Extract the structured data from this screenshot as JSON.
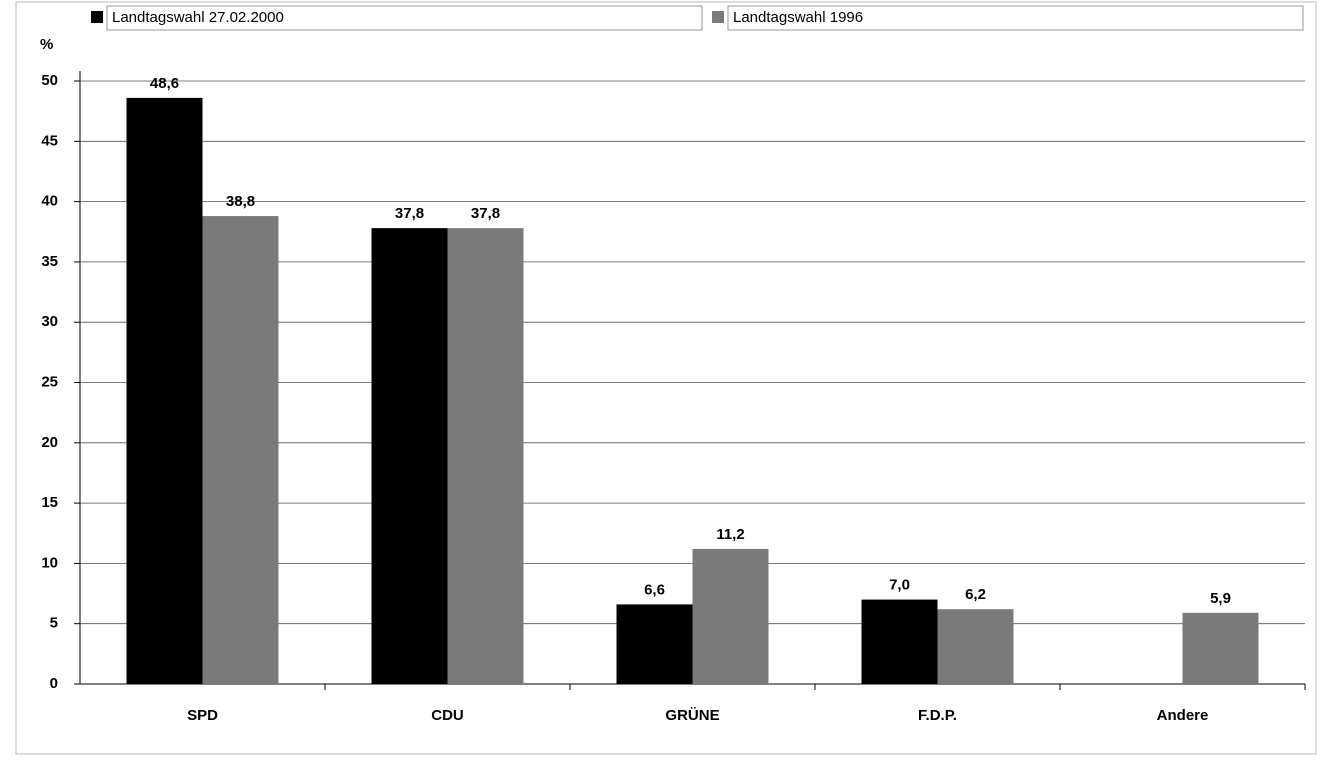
{
  "chart_data": {
    "type": "bar",
    "categories": [
      "SPD",
      "CDU",
      "GRÜNE",
      "F.D.P.",
      "Andere"
    ],
    "y_label": "%",
    "series": [
      {
        "name": "Landtagswahl 27.02.2000",
        "color": "#000000",
        "values": [
          48.6,
          37.8,
          6.6,
          7.0,
          null
        ],
        "value_labels": [
          "48,6",
          "37,8",
          "6,6",
          "7,0",
          null
        ]
      },
      {
        "name": "Landtagswahl 1996",
        "color": "#7a7a7a",
        "values": [
          38.8,
          37.8,
          11.2,
          6.2,
          5.9
        ],
        "value_labels": [
          "38,8",
          "37,8",
          "11,2",
          "6,2",
          "5,9"
        ]
      }
    ],
    "ylim": [
      0,
      50
    ],
    "yticks": [
      0,
      5,
      10,
      15,
      20,
      25,
      30,
      35,
      40,
      45,
      50
    ],
    "grid": true,
    "legend": "top"
  }
}
